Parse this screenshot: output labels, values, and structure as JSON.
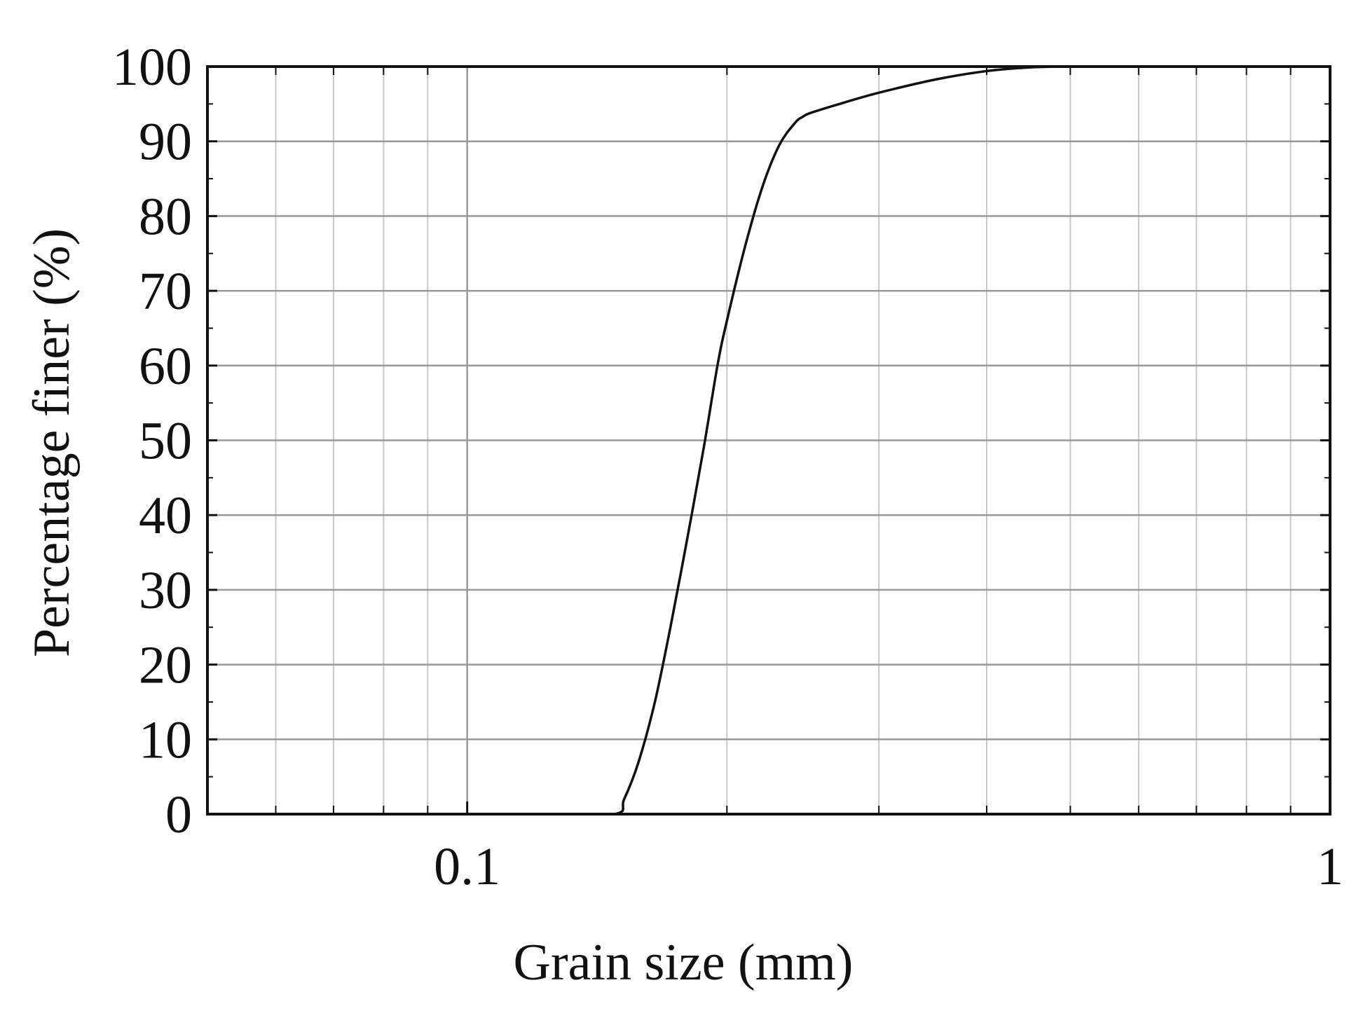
{
  "chart_data": {
    "type": "line",
    "xlabel": "Grain size (mm)",
    "ylabel": "Percentage finer (%)",
    "x_scale": "log",
    "xlim": [
      0.05,
      1
    ],
    "ylim": [
      0,
      100
    ],
    "x_tick_labels": [
      {
        "value": 0.1,
        "label": "0.1"
      },
      {
        "value": 1,
        "label": "1"
      }
    ],
    "y_tick_labels": [
      {
        "value": 0,
        "label": "0"
      },
      {
        "value": 10,
        "label": "10"
      },
      {
        "value": 20,
        "label": "20"
      },
      {
        "value": 30,
        "label": "30"
      },
      {
        "value": 40,
        "label": "40"
      },
      {
        "value": 50,
        "label": "50"
      },
      {
        "value": 60,
        "label": "60"
      },
      {
        "value": 70,
        "label": "70"
      },
      {
        "value": 80,
        "label": "80"
      },
      {
        "value": 90,
        "label": "90"
      },
      {
        "value": 100,
        "label": "100"
      }
    ],
    "grid": true,
    "x_minor_gridlines": [
      0.06,
      0.07,
      0.08,
      0.09,
      0.2,
      0.3,
      0.4,
      0.5,
      0.6,
      0.7,
      0.8,
      0.9
    ],
    "series": [
      {
        "color": "#111111",
        "x": [
          0.075,
          0.09,
          0.1,
          0.12,
          0.148,
          0.152,
          0.158,
          0.165,
          0.172,
          0.18,
          0.188,
          0.195,
          0.2,
          0.21,
          0.22,
          0.23,
          0.24,
          0.245,
          0.25,
          0.27,
          0.3,
          0.35,
          0.4,
          0.45,
          0.5
        ],
        "y": [
          0,
          0,
          0,
          0,
          0,
          2,
          7,
          15,
          25,
          37,
          49,
          60,
          66,
          76,
          84,
          89.5,
          92.5,
          93.3,
          93.8,
          95,
          96.5,
          98.3,
          99.4,
          99.9,
          100
        ]
      }
    ]
  }
}
